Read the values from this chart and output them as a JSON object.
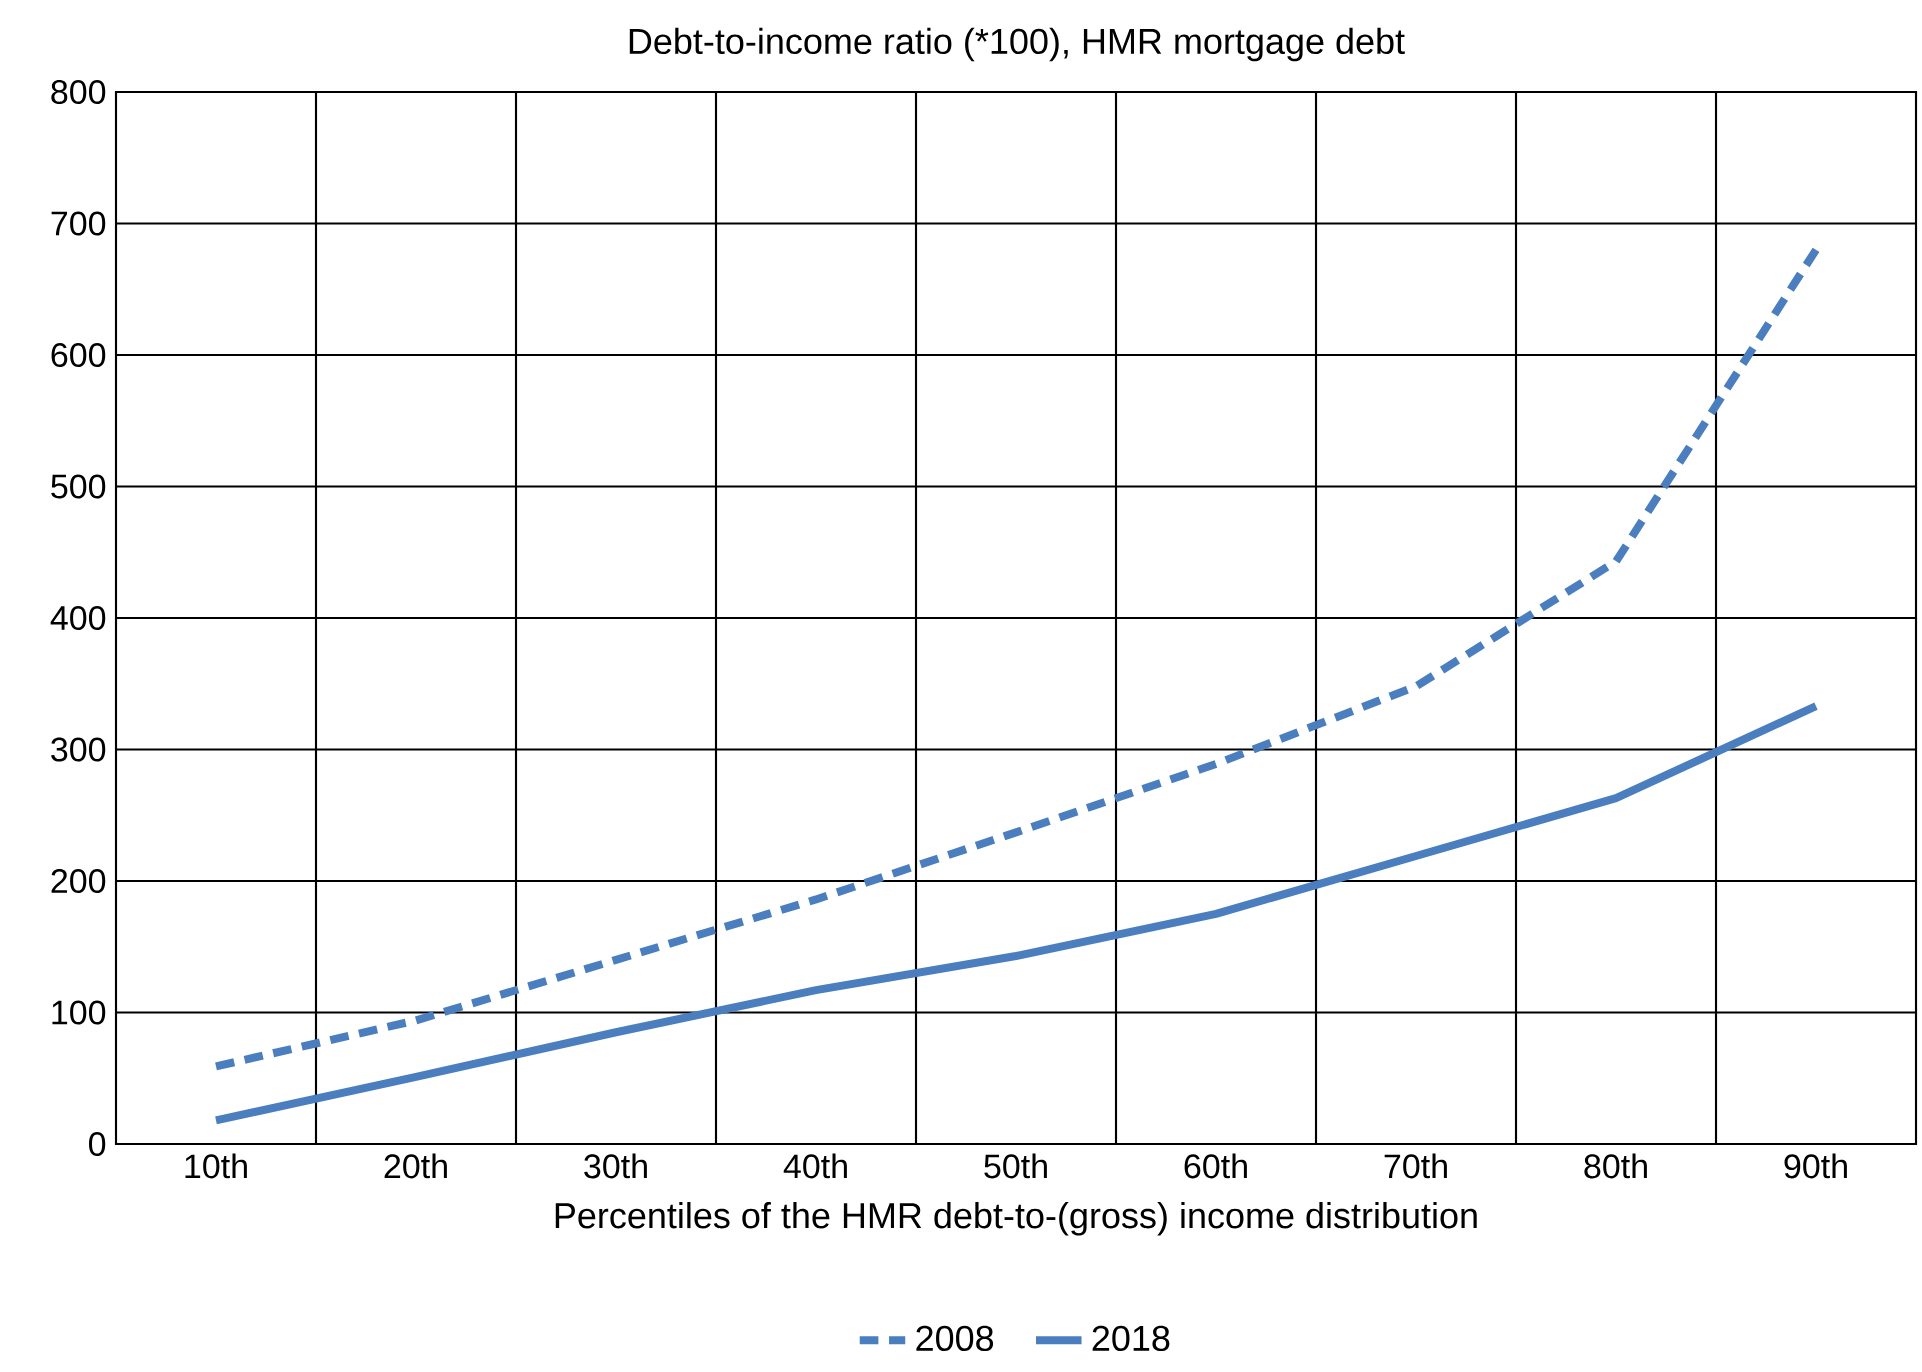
{
  "chart_data": {
    "type": "line",
    "title": "Debt-to-income ratio (*100), HMR mortgage debt",
    "xlabel": "Percentiles of the HMR debt-to-(gross) income distribution",
    "categories": [
      "10th",
      "20th",
      "30th",
      "40th",
      "50th",
      "60th",
      "70th",
      "80th",
      "90th"
    ],
    "series": [
      {
        "name": "2008",
        "color": "#4a7ebf",
        "line_style": "dashed",
        "values": [
          59,
          94,
          140,
          186,
          237,
          289,
          348,
          443,
          680
        ]
      },
      {
        "name": "2018",
        "color": "#4a7ebf",
        "line_style": "solid",
        "values": [
          18,
          51,
          85,
          117,
          143,
          175,
          219,
          263,
          333
        ]
      }
    ],
    "ylim": [
      0,
      800
    ],
    "yticks": [
      0,
      100,
      200,
      300,
      400,
      500,
      600,
      700,
      800
    ],
    "grid": true,
    "legend": "bottom"
  }
}
